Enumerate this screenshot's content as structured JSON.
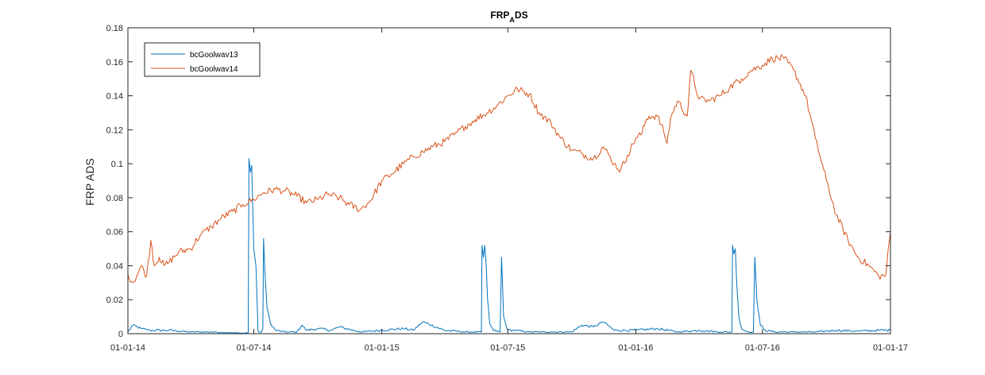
{
  "chart_data": {
    "type": "line",
    "title_main": "FRP",
    "title_sub": "A",
    "title_tail": "DS",
    "ylabel": "FRP ADS",
    "xlabel": "",
    "ylim": [
      0,
      0.18
    ],
    "xlim": [
      "01-01-14",
      "01-01-17"
    ],
    "y_ticks": [
      "0",
      "0.02",
      "0.04",
      "0.06",
      "0.08",
      "0.1",
      "0.12",
      "0.14",
      "0.16",
      "0.18"
    ],
    "x_ticks": [
      "01-01-14",
      "01-07-14",
      "01-01-15",
      "01-07-15",
      "01-01-16",
      "01-07-16",
      "01-01-17"
    ],
    "grid": false,
    "legend_position": "top-left",
    "series": [
      {
        "name": "bcGoolwav13",
        "color": "#0072BD",
        "x": [
          "2014-01-01",
          "2014-01-08",
          "2014-01-20",
          "2014-02-01",
          "2014-03-01",
          "2014-04-01",
          "2014-05-01",
          "2014-06-01",
          "2014-06-15",
          "2014-06-23",
          "2014-06-24",
          "2014-06-26",
          "2014-06-28",
          "2014-07-01",
          "2014-07-04",
          "2014-07-07",
          "2014-07-08",
          "2014-07-12",
          "2014-07-14",
          "2014-07-15",
          "2014-07-17",
          "2014-07-20",
          "2014-07-25",
          "2014-08-01",
          "2014-08-15",
          "2014-09-01",
          "2014-09-08",
          "2014-09-15",
          "2014-10-01",
          "2014-10-20",
          "2014-11-01",
          "2014-12-01",
          "2015-01-01",
          "2015-02-01",
          "2015-02-15",
          "2015-03-01",
          "2015-04-01",
          "2015-05-01",
          "2015-05-24",
          "2015-05-25",
          "2015-05-27",
          "2015-05-29",
          "2015-05-31",
          "2015-06-02",
          "2015-06-05",
          "2015-06-10",
          "2015-06-20",
          "2015-06-22",
          "2015-06-25",
          "2015-07-01",
          "2015-07-10",
          "2015-08-01",
          "2015-09-01",
          "2015-10-01",
          "2015-10-15",
          "2015-11-01",
          "2015-11-15",
          "2015-12-01",
          "2016-01-01",
          "2016-02-01",
          "2016-03-01",
          "2016-04-01",
          "2016-05-01",
          "2016-05-18",
          "2016-05-19",
          "2016-05-21",
          "2016-05-23",
          "2016-05-25",
          "2016-05-28",
          "2016-06-01",
          "2016-06-10",
          "2016-06-18",
          "2016-06-20",
          "2016-06-23",
          "2016-06-28",
          "2016-07-05",
          "2016-07-20",
          "2016-08-15",
          "2016-09-15",
          "2016-10-15",
          "2016-11-15",
          "2016-12-15",
          "2017-01-01"
        ],
        "y": [
          0.001,
          0.005,
          0.003,
          0.002,
          0.002,
          0.001,
          0.001,
          0.0005,
          0.0003,
          0.0005,
          0.103,
          0.095,
          0.099,
          0.05,
          0.04,
          0.002,
          0.001,
          0.001,
          0.003,
          0.056,
          0.035,
          0.015,
          0.006,
          0.002,
          0.001,
          0.001,
          0.005,
          0.002,
          0.003,
          0.002,
          0.004,
          0.001,
          0.002,
          0.003,
          0.002,
          0.007,
          0.002,
          0.001,
          0.001,
          0.052,
          0.045,
          0.052,
          0.04,
          0.02,
          0.006,
          0.002,
          0.001,
          0.045,
          0.01,
          0.002,
          0.002,
          0.001,
          0.001,
          0.001,
          0.005,
          0.004,
          0.007,
          0.002,
          0.002,
          0.003,
          0.001,
          0.002,
          0.001,
          0.001,
          0.052,
          0.047,
          0.05,
          0.03,
          0.01,
          0.003,
          0.001,
          0.001,
          0.045,
          0.02,
          0.005,
          0.002,
          0.001,
          0.001,
          0.001,
          0.002,
          0.0015,
          0.002,
          0.002
        ]
      },
      {
        "name": "bcGoolwav14",
        "color": "#D95319",
        "x": [
          "2014-01-01",
          "2014-01-08",
          "2014-01-15",
          "2014-01-20",
          "2014-01-28",
          "2014-02-03",
          "2014-02-08",
          "2014-02-15",
          "2014-02-22",
          "2014-03-01",
          "2014-03-15",
          "2014-04-01",
          "2014-04-15",
          "2014-05-01",
          "2014-05-15",
          "2014-06-01",
          "2014-06-15",
          "2014-07-01",
          "2014-07-15",
          "2014-08-01",
          "2014-08-15",
          "2014-09-01",
          "2014-09-15",
          "2014-10-01",
          "2014-10-15",
          "2014-11-01",
          "2014-11-15",
          "2014-12-01",
          "2014-12-15",
          "2015-01-01",
          "2015-01-15",
          "2015-02-01",
          "2015-02-15",
          "2015-03-01",
          "2015-03-15",
          "2015-04-01",
          "2015-04-15",
          "2015-05-01",
          "2015-05-15",
          "2015-06-01",
          "2015-06-15",
          "2015-07-01",
          "2015-07-15",
          "2015-08-01",
          "2015-08-15",
          "2015-09-01",
          "2015-09-15",
          "2015-10-01",
          "2015-10-15",
          "2015-11-01",
          "2015-11-15",
          "2015-12-01",
          "2015-12-10",
          "2015-12-20",
          "2016-01-01",
          "2016-01-10",
          "2016-01-15",
          "2016-01-20",
          "2016-02-01",
          "2016-02-10",
          "2016-02-15",
          "2016-02-20",
          "2016-03-01",
          "2016-03-15",
          "2016-03-20",
          "2016-04-01",
          "2016-04-15",
          "2016-05-01",
          "2016-05-15",
          "2016-06-01",
          "2016-06-15",
          "2016-07-01",
          "2016-07-15",
          "2016-08-01",
          "2016-08-15",
          "2016-09-01",
          "2016-09-15",
          "2016-10-01",
          "2016-10-15",
          "2016-11-01",
          "2016-11-15",
          "2016-12-01",
          "2016-12-15",
          "2016-12-25",
          "2017-01-01"
        ],
        "y": [
          0.035,
          0.03,
          0.035,
          0.04,
          0.034,
          0.055,
          0.04,
          0.045,
          0.04,
          0.042,
          0.048,
          0.05,
          0.058,
          0.063,
          0.068,
          0.072,
          0.076,
          0.079,
          0.083,
          0.085,
          0.084,
          0.081,
          0.077,
          0.079,
          0.082,
          0.08,
          0.076,
          0.073,
          0.078,
          0.09,
          0.094,
          0.1,
          0.104,
          0.107,
          0.11,
          0.113,
          0.117,
          0.122,
          0.126,
          0.13,
          0.134,
          0.14,
          0.144,
          0.141,
          0.13,
          0.124,
          0.115,
          0.108,
          0.106,
          0.103,
          0.11,
          0.1,
          0.096,
          0.105,
          0.115,
          0.118,
          0.125,
          0.128,
          0.128,
          0.119,
          0.112,
          0.127,
          0.137,
          0.128,
          0.155,
          0.138,
          0.137,
          0.14,
          0.145,
          0.15,
          0.155,
          0.158,
          0.162,
          0.162,
          0.155,
          0.14,
          0.115,
          0.09,
          0.07,
          0.055,
          0.045,
          0.04,
          0.034,
          0.034,
          0.06
        ]
      }
    ]
  }
}
